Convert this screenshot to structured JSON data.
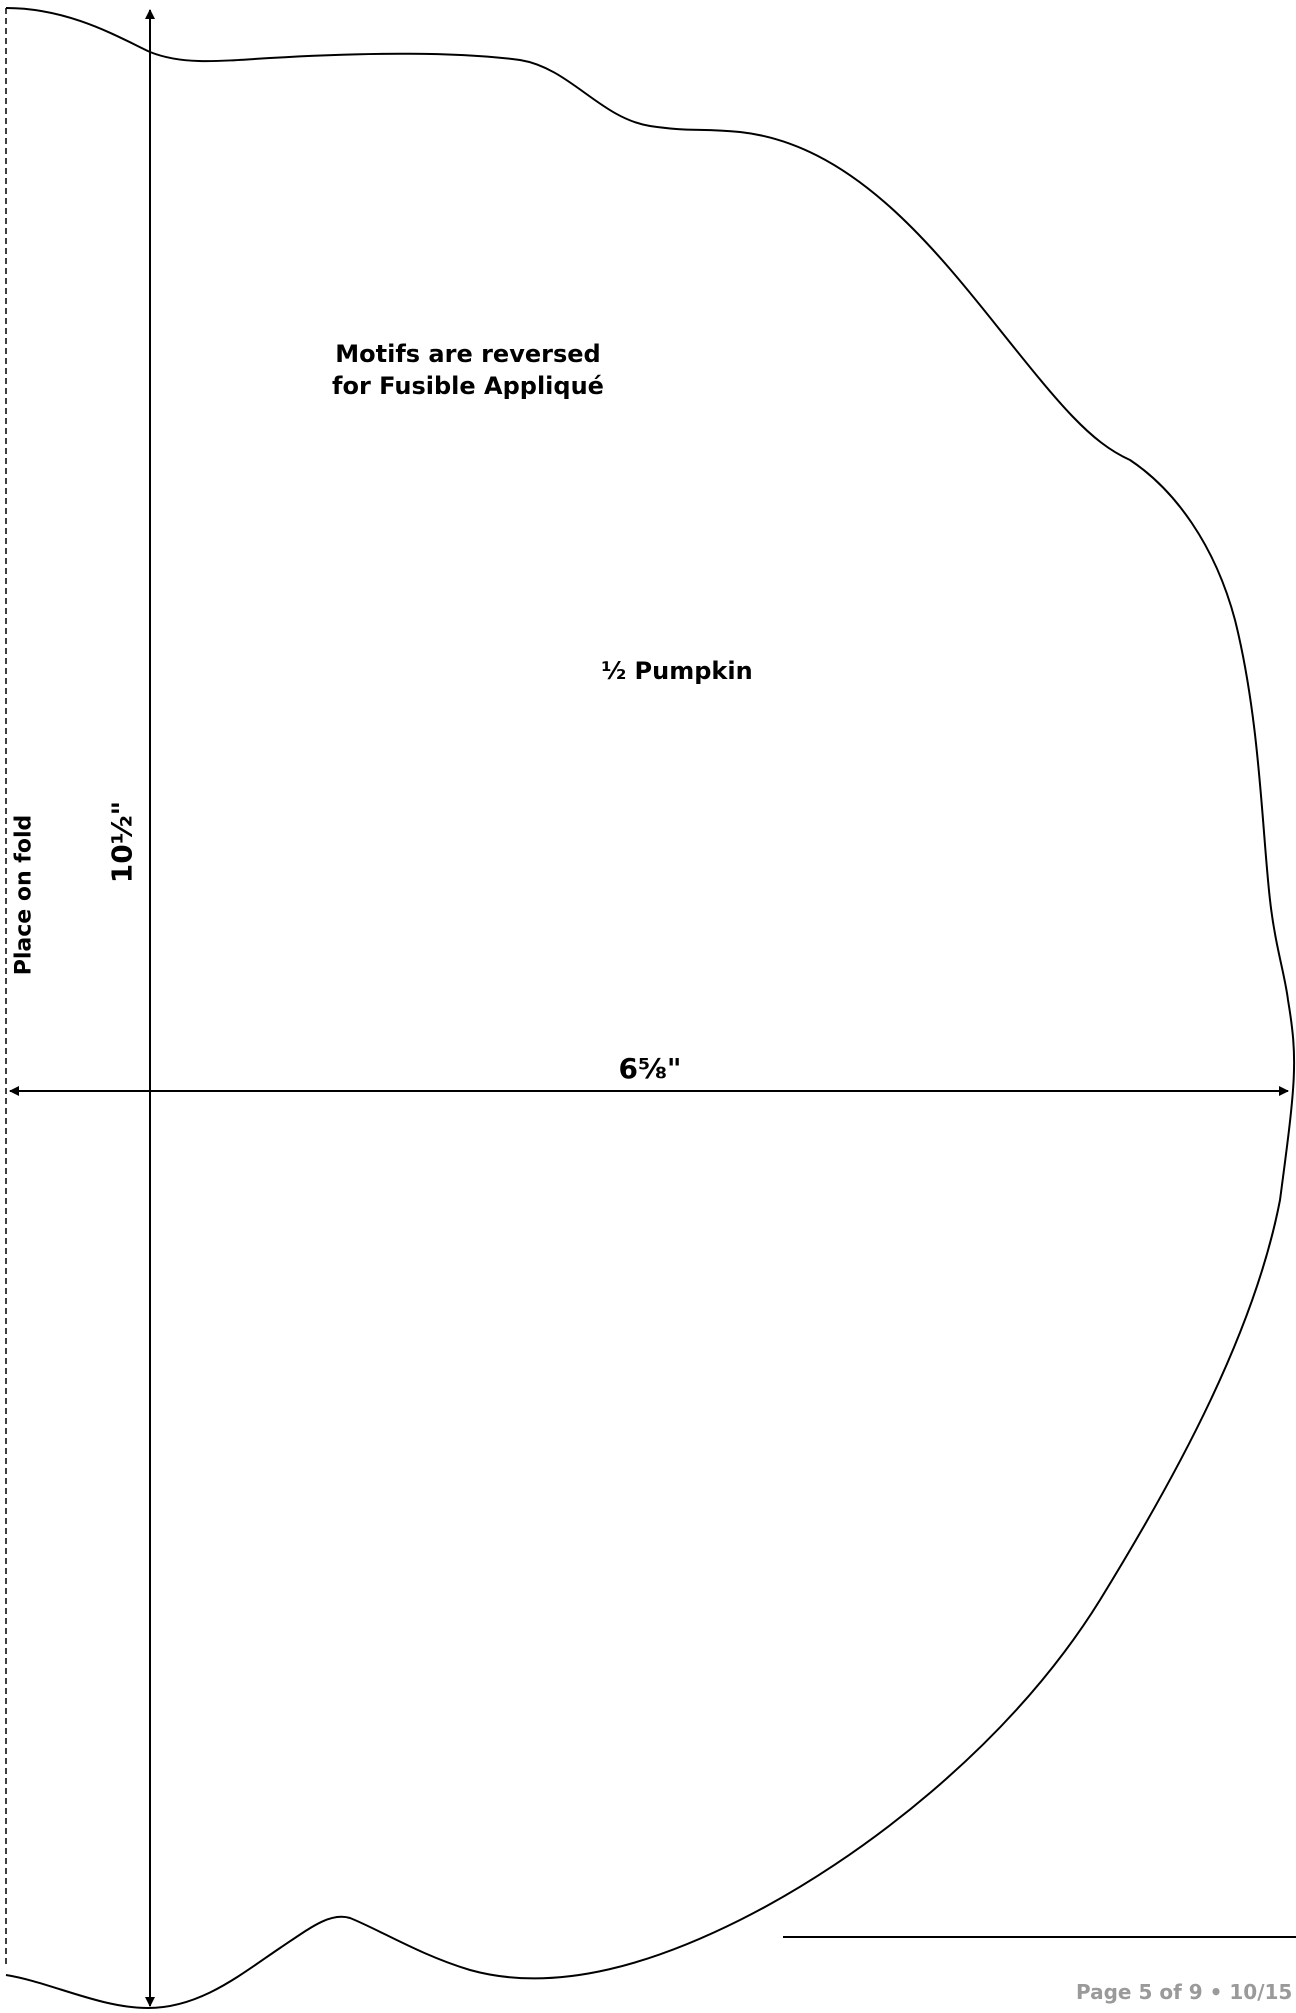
{
  "pattern": {
    "note_line1": "Motifs are reversed",
    "note_line2": "for Fusible Appliqué",
    "piece_name": "½ Pumpkin",
    "height_dimension": "10½\"",
    "width_dimension": "6⅝\"",
    "fold_instruction": "Place on fold"
  },
  "footer": {
    "page_info": "Page 5 of 9 • 10/15"
  },
  "colors": {
    "outline": "#000000",
    "footer_text": "#9a9a9a"
  }
}
